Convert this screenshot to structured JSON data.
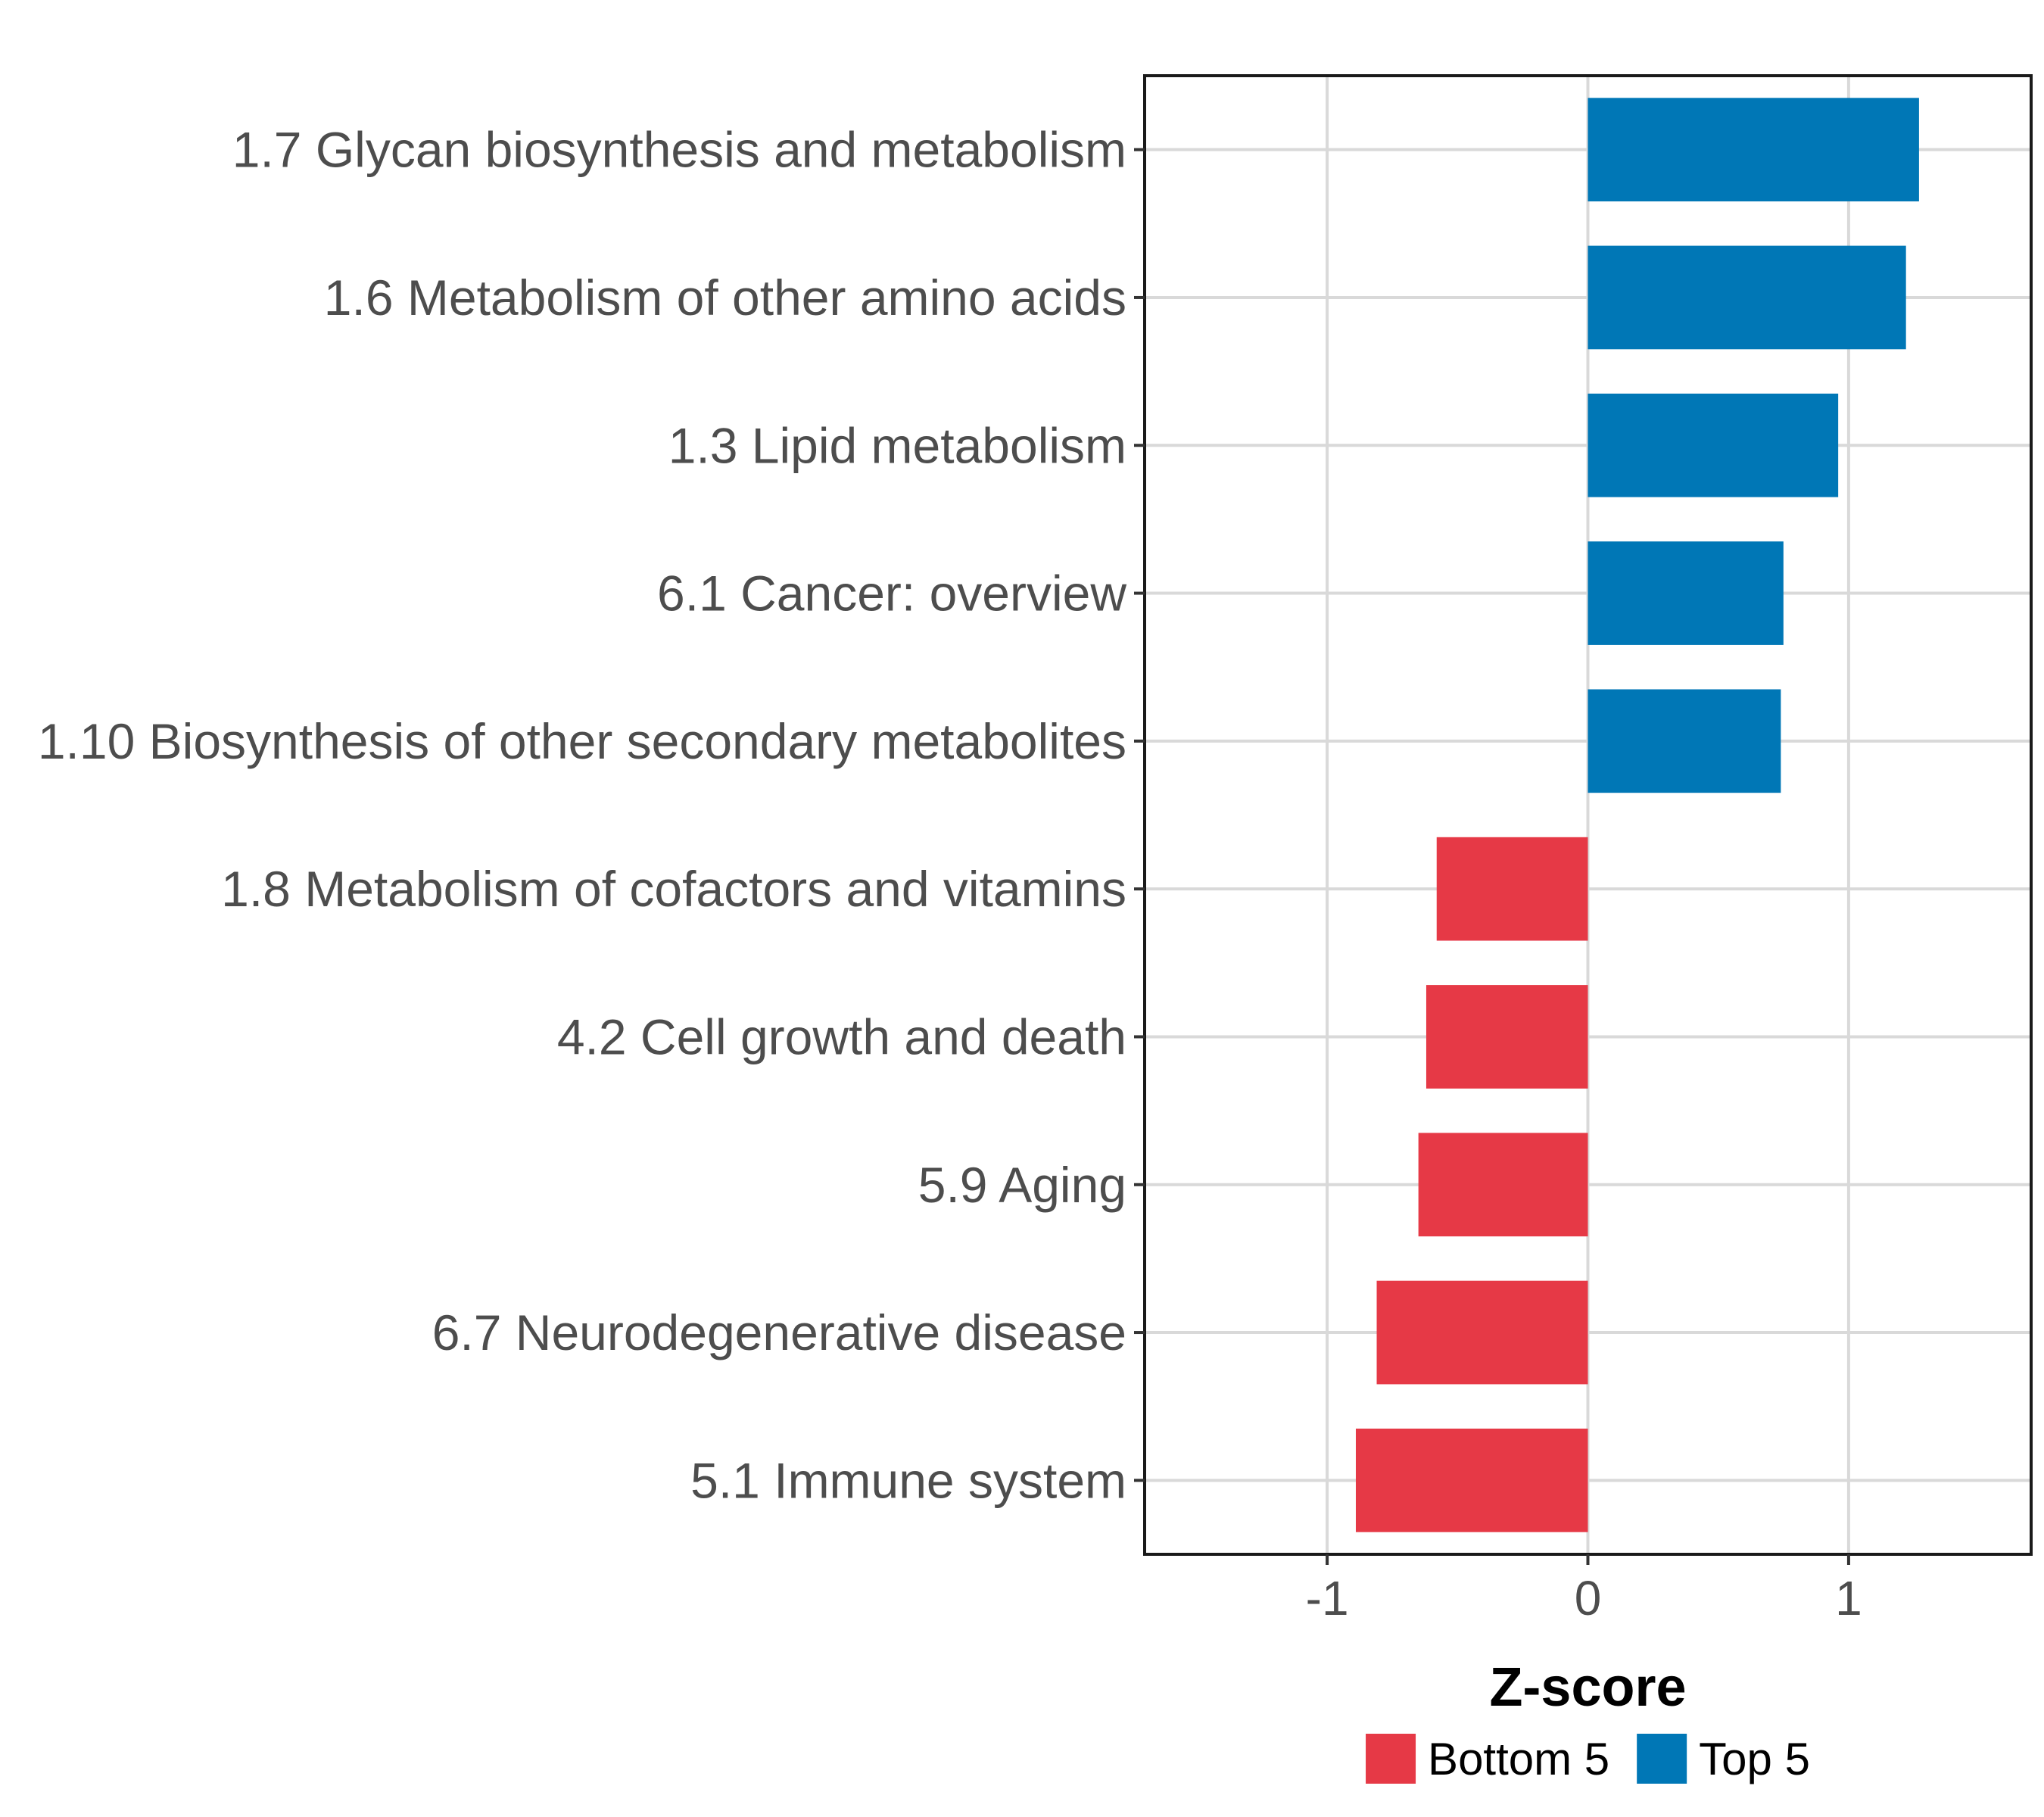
{
  "chart_data": {
    "type": "bar",
    "orientation": "horizontal",
    "categories": [
      "1.7 Glycan biosynthesis and metabolism",
      "1.6 Metabolism of other amino acids",
      "1.3 Lipid metabolism",
      "6.1 Cancer: overview",
      "1.10 Biosynthesis of other secondary metabolites",
      "1.8 Metabolism of cofactors and vitamins",
      "4.2 Cell growth and death",
      "5.9 Aging",
      "6.7 Neurodegenerative disease",
      "5.1 Immune system"
    ],
    "values": [
      1.27,
      1.22,
      0.96,
      0.75,
      0.74,
      -0.58,
      -0.62,
      -0.65,
      -0.81,
      -0.89
    ],
    "groups": [
      "Top 5",
      "Top 5",
      "Top 5",
      "Top 5",
      "Top 5",
      "Bottom 5",
      "Bottom 5",
      "Bottom 5",
      "Bottom 5",
      "Bottom 5"
    ],
    "xlim": [
      -1.7,
      1.7
    ],
    "xticks": [
      -1,
      0,
      1
    ],
    "xtick_labels": [
      "-1",
      "0",
      "1"
    ],
    "xlabel": "Z-score",
    "ylabel": "",
    "title": "",
    "grid": true,
    "legend": {
      "position": "bottom",
      "items": [
        {
          "label": "Bottom 5",
          "color": "#e63946"
        },
        {
          "label": "Top 5",
          "color": "#0077b6"
        }
      ]
    }
  }
}
